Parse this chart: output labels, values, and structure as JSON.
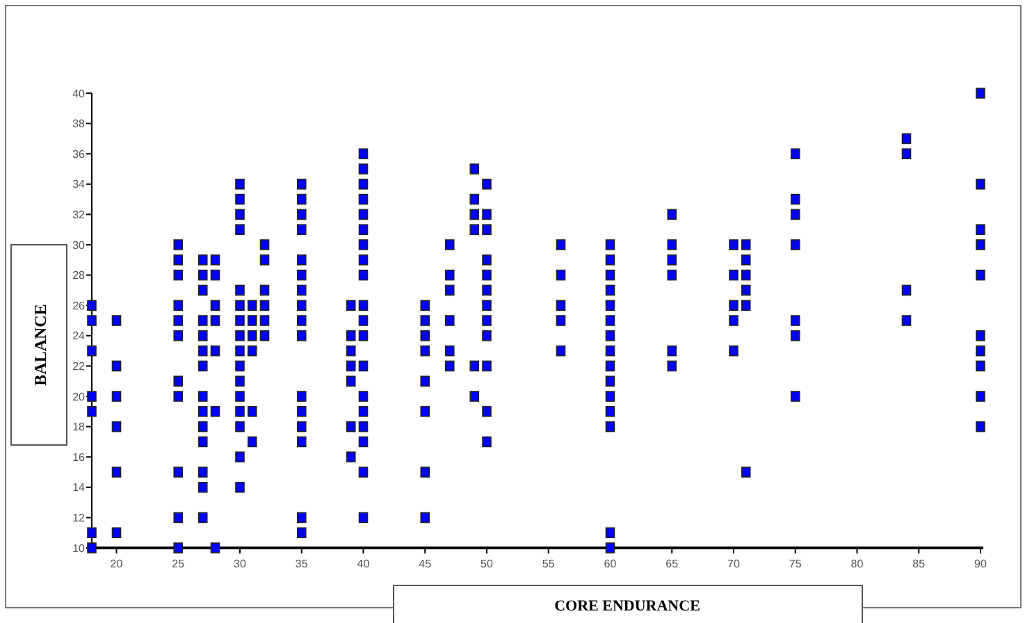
{
  "chart_data": {
    "type": "scatter",
    "xlabel": "CORE ENDURANCE",
    "ylabel": "BALANCE",
    "marker": "square",
    "grid": false,
    "xlim": [
      18,
      90
    ],
    "xticks": [
      20,
      25,
      30,
      35,
      40,
      45,
      50,
      55,
      60,
      65,
      70,
      75,
      80,
      85,
      90
    ],
    "ylim": [
      10,
      40
    ],
    "yticks": [
      10,
      12,
      14,
      16,
      18,
      20,
      22,
      24,
      26,
      28,
      30,
      32,
      34,
      36,
      38,
      40
    ],
    "series": [
      {
        "color": "#0000ff",
        "x": [
          18,
          18,
          18,
          18,
          18,
          18,
          18,
          20,
          20,
          20,
          20,
          20,
          20,
          25,
          25,
          25,
          25,
          25,
          25,
          25,
          25,
          25,
          25,
          25,
          27,
          27,
          27,
          27,
          27,
          27,
          27,
          27,
          27,
          27,
          27,
          27,
          27,
          27,
          28,
          28,
          28,
          28,
          28,
          28,
          28,
          30,
          30,
          30,
          30,
          30,
          30,
          30,
          30,
          30,
          30,
          30,
          30,
          30,
          30,
          30,
          30,
          31,
          31,
          31,
          31,
          31,
          31,
          32,
          32,
          32,
          32,
          32,
          32,
          35,
          35,
          35,
          35,
          35,
          35,
          35,
          35,
          35,
          35,
          35,
          35,
          35,
          35,
          35,
          35,
          39,
          39,
          39,
          39,
          39,
          39,
          39,
          40,
          40,
          40,
          40,
          40,
          40,
          40,
          40,
          40,
          40,
          40,
          40,
          40,
          40,
          40,
          40,
          40,
          40,
          40,
          45,
          45,
          45,
          45,
          45,
          45,
          45,
          45,
          47,
          47,
          47,
          47,
          47,
          47,
          49,
          49,
          49,
          49,
          49,
          49,
          50,
          50,
          50,
          50,
          50,
          50,
          50,
          50,
          50,
          50,
          50,
          50,
          56,
          56,
          56,
          56,
          56,
          60,
          60,
          60,
          60,
          60,
          60,
          60,
          60,
          60,
          60,
          60,
          60,
          60,
          60,
          60,
          65,
          65,
          65,
          65,
          65,
          65,
          70,
          70,
          70,
          70,
          70,
          71,
          71,
          71,
          71,
          71,
          71,
          75,
          75,
          75,
          75,
          75,
          75,
          75,
          84,
          84,
          84,
          84,
          90,
          90,
          90,
          90,
          90,
          90,
          90,
          90,
          90,
          90
        ],
        "values": [
          26,
          25,
          23,
          20,
          19,
          11,
          10,
          25,
          22,
          20,
          18,
          15,
          11,
          30,
          29,
          28,
          26,
          25,
          24,
          21,
          20,
          15,
          12,
          10,
          29,
          28,
          27,
          25,
          24,
          23,
          22,
          20,
          19,
          18,
          17,
          15,
          14,
          12,
          29,
          28,
          26,
          25,
          23,
          19,
          10,
          34,
          33,
          32,
          31,
          27,
          26,
          25,
          24,
          23,
          22,
          21,
          20,
          19,
          18,
          16,
          14,
          26,
          25,
          24,
          23,
          19,
          17,
          30,
          29,
          27,
          26,
          25,
          24,
          34,
          33,
          32,
          31,
          29,
          28,
          27,
          26,
          25,
          24,
          20,
          19,
          18,
          17,
          12,
          11,
          26,
          24,
          23,
          22,
          21,
          18,
          16,
          36,
          35,
          34,
          33,
          32,
          31,
          30,
          29,
          28,
          26,
          25,
          24,
          22,
          20,
          19,
          18,
          17,
          15,
          12,
          26,
          25,
          24,
          23,
          21,
          19,
          15,
          12,
          30,
          28,
          27,
          25,
          23,
          22,
          35,
          33,
          32,
          31,
          22,
          20,
          34,
          32,
          31,
          29,
          28,
          27,
          26,
          25,
          24,
          22,
          19,
          17,
          30,
          28,
          26,
          25,
          23,
          30,
          29,
          28,
          27,
          26,
          25,
          24,
          23,
          22,
          21,
          20,
          19,
          18,
          11,
          10,
          32,
          30,
          29,
          28,
          23,
          22,
          30,
          28,
          26,
          25,
          23,
          30,
          29,
          28,
          27,
          26,
          15,
          36,
          33,
          32,
          30,
          25,
          24,
          20,
          37,
          36,
          27,
          25,
          40,
          34,
          31,
          30,
          28,
          24,
          23,
          22,
          20,
          18
        ]
      }
    ]
  }
}
